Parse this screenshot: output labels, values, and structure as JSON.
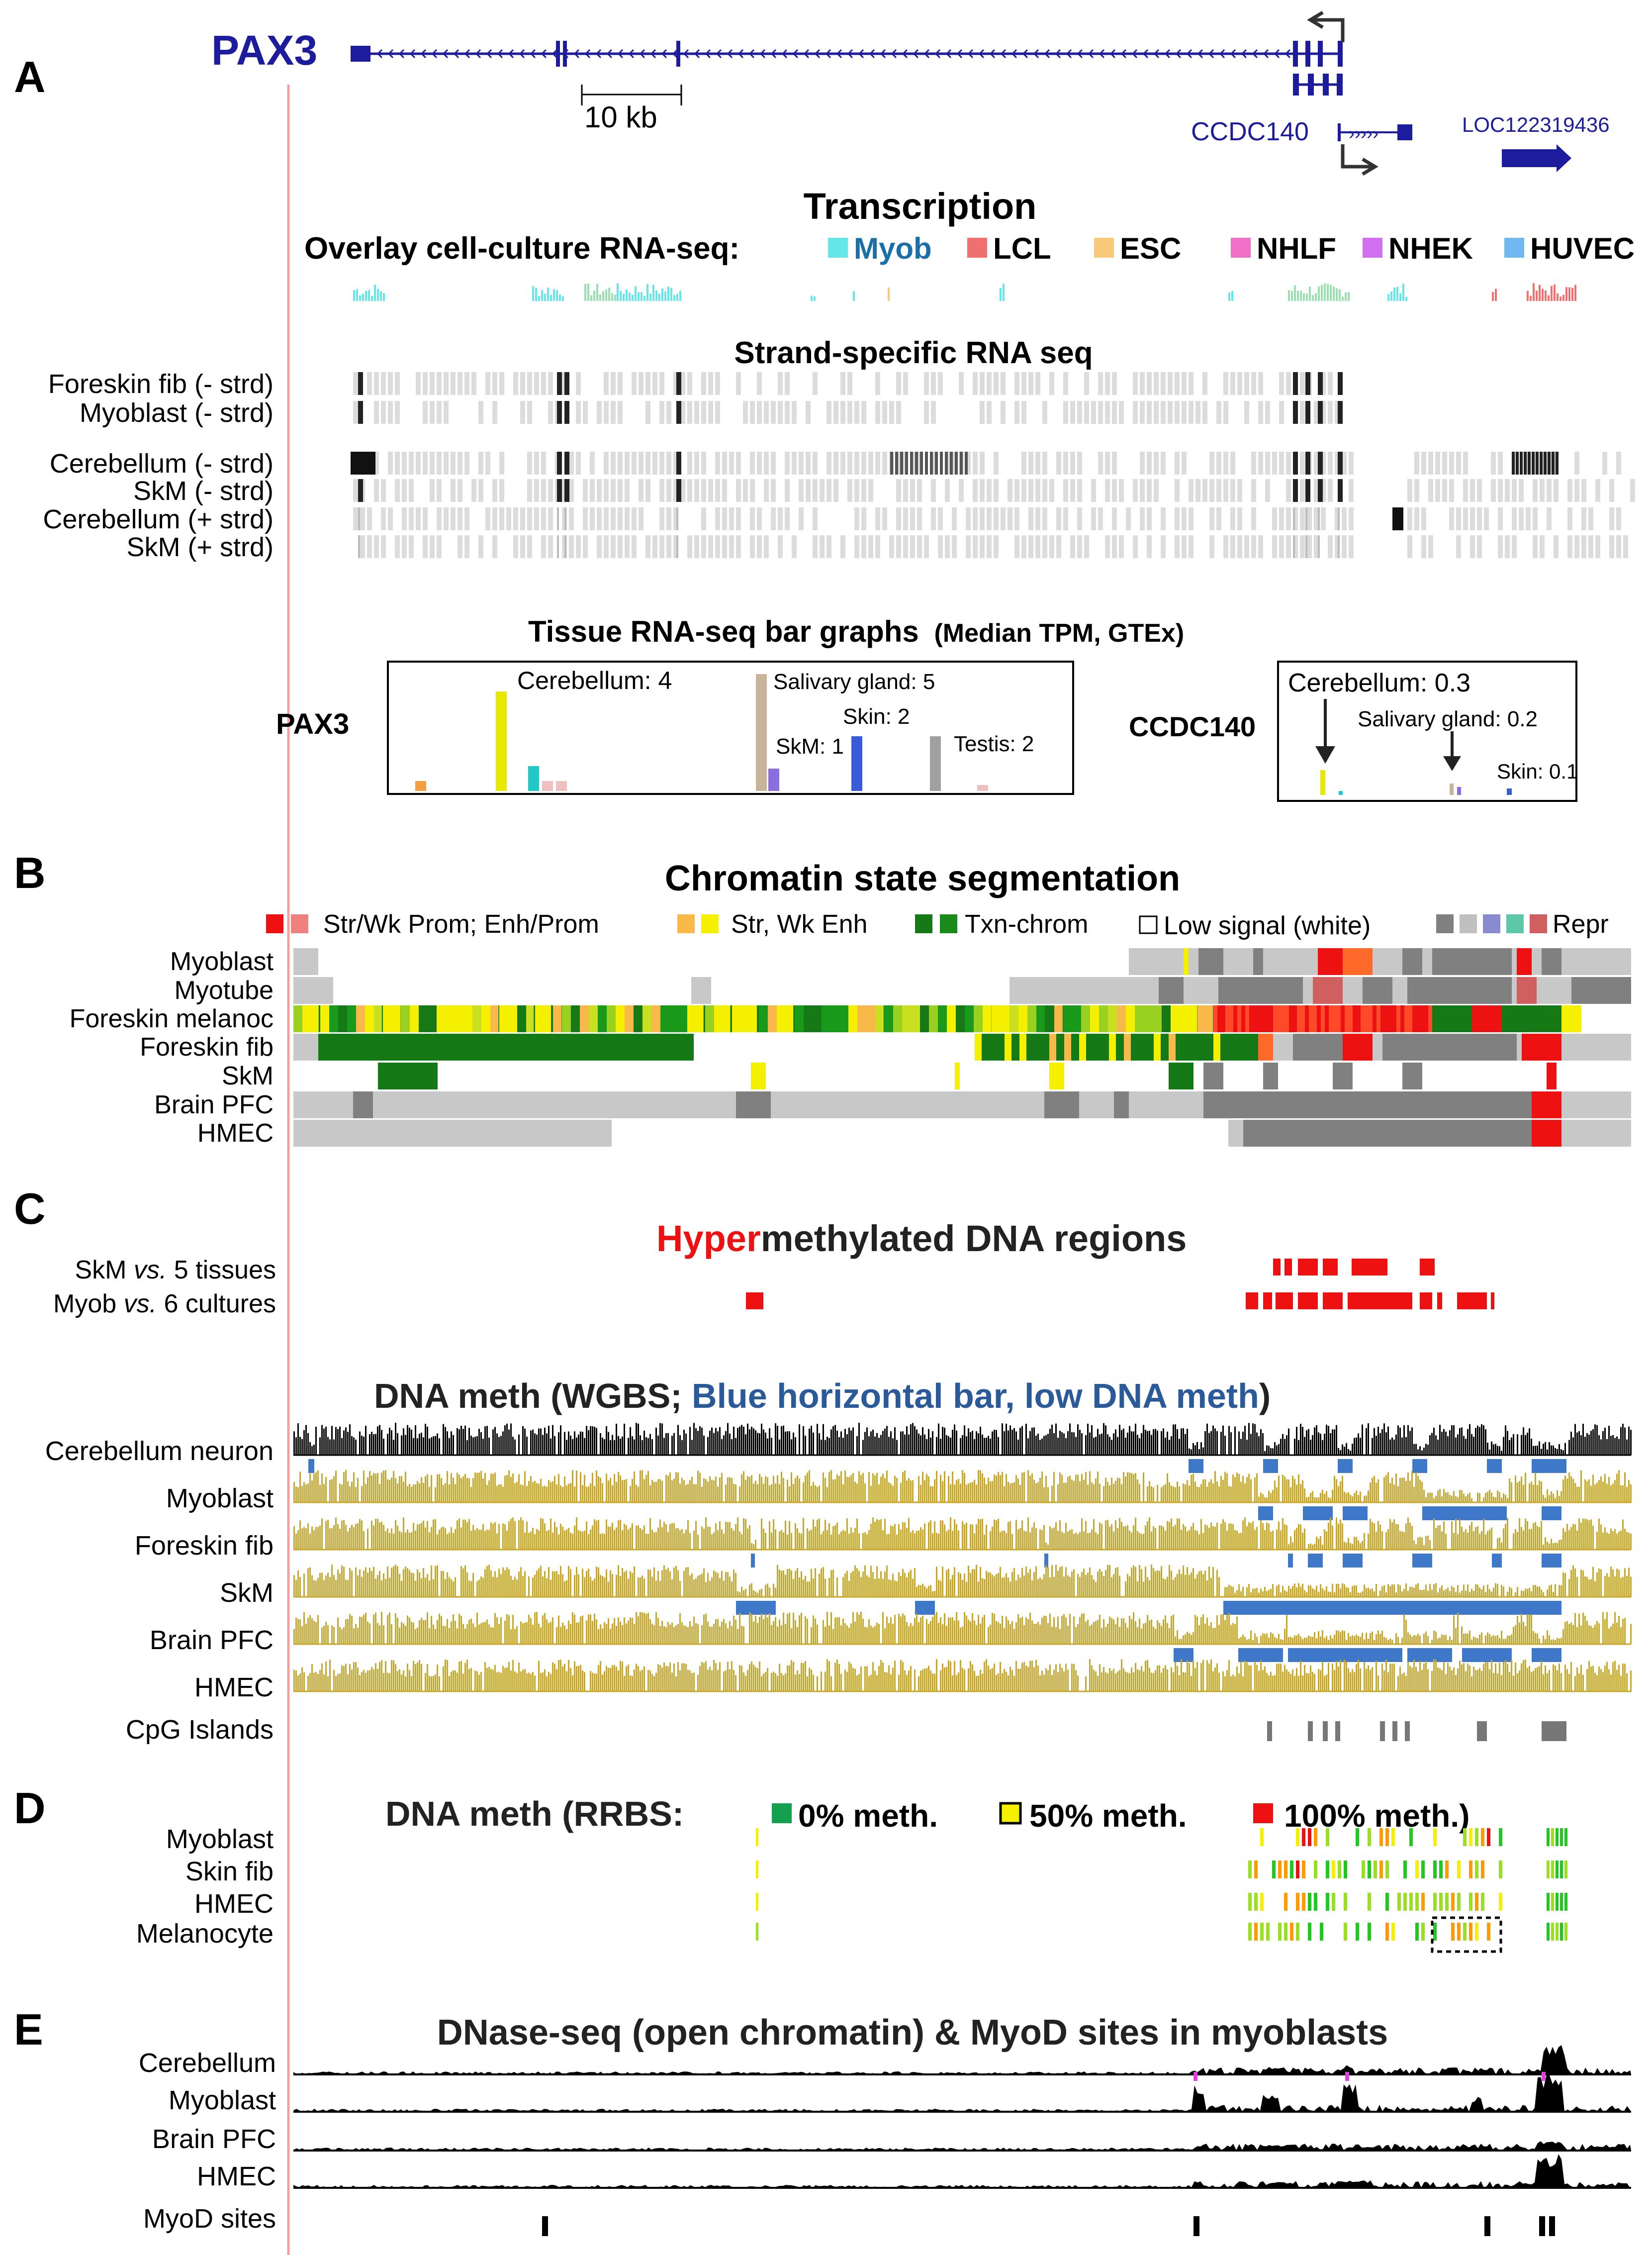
{
  "panels": {
    "a": "A",
    "b": "B",
    "c": "C",
    "d": "D",
    "e": "E"
  },
  "gene_track": {
    "gene_name": "PAX3",
    "scale_label": "10 kb",
    "ccdc140_label": "CCDC140",
    "loc_label": "LOC122319436"
  },
  "transcription": {
    "title": "Transcription",
    "overlay_title": "Overlay cell-culture RNA-seq:",
    "legend": [
      {
        "label": "Myob",
        "color": "#66e6e6",
        "text_color": "#1a6fa8"
      },
      {
        "label": "LCL",
        "color": "#f07070",
        "text_color": "#000000"
      },
      {
        "label": "ESC",
        "color": "#f9c97a",
        "text_color": "#000000"
      },
      {
        "label": "NHLF",
        "color": "#f070c8",
        "text_color": "#000000"
      },
      {
        "label": "NHEK",
        "color": "#d070f0",
        "text_color": "#000000"
      },
      {
        "label": "HUVEC",
        "color": "#70b8f0",
        "text_color": "#000000"
      }
    ],
    "strand_title": "Strand-specific RNA seq",
    "strand_rows": [
      "Foreskin fib (- strd)",
      "Myoblast (- strd)",
      "Cerebellum (- strd)",
      "SkM (- strd)",
      "Cerebellum (+ strd)",
      "SkM (+ strd)"
    ],
    "bar_title": "Tissue RNA-seq bar graphs",
    "bar_subtitle": "(Median TPM, GTEx)",
    "pax3_label": "PAX3",
    "pax3_annotations": [
      "Cerebellum: 4",
      "Salivary gland: 5",
      "Skin: 2",
      "SkM: 1",
      "Testis: 2"
    ],
    "ccdc140_label": "CCDC140",
    "ccdc140_annotations": [
      "Cerebellum: 0.3",
      "Salivary gland: 0.2",
      "Skin: 0.1"
    ]
  },
  "chromatin": {
    "title": "Chromatin state segmentation",
    "legend": [
      "Str/Wk Prom; Enh/Prom",
      "Str, Wk Enh",
      "Txn-chrom",
      "Low signal (white)",
      "Repr"
    ],
    "rows": [
      "Myoblast",
      "Myotube",
      "Foreskin melanoc",
      "Foreskin fib",
      "SkM",
      "Brain PFC",
      "HMEC"
    ]
  },
  "hypermeth": {
    "title_red": "Hyper",
    "title_rest": "methylated DNA regions",
    "row1_a": "SkM ",
    "row1_b": "vs.",
    "row1_c": " 5 tissues",
    "row2_a": "Myob ",
    "row2_b": "vs.",
    "row2_c": " 6 cultures"
  },
  "wgbs": {
    "title_a": "DNA meth (WGBS; ",
    "title_b": "Blue horizontal bar, low DNA meth",
    "title_c": ")",
    "rows": [
      "Cerebellum neuron",
      "Myoblast",
      "Foreskin fib",
      "SkM",
      "Brain PFC",
      "HMEC",
      "CpG Islands"
    ]
  },
  "rrbs": {
    "title": "DNA meth (RRBS:",
    "legend": [
      "0% meth.",
      "50% meth.",
      "100% meth.)"
    ],
    "rows": [
      "Myoblast",
      "Skin fib",
      "HMEC",
      "Melanocyte"
    ]
  },
  "dnase": {
    "title": "DNase-seq (open chromatin) & MyoD sites in myoblasts",
    "rows": [
      "Cerebellum",
      "Myoblast",
      "Brain PFC",
      "HMEC",
      "MyoD sites"
    ]
  },
  "colors": {
    "gene_blue": "#1c1c9c",
    "gold": "#c8a82a",
    "meth_blue": "#3f78c8",
    "red": "#ee1111",
    "dark_green": "#157a15",
    "gray": "#c8c8c8"
  }
}
